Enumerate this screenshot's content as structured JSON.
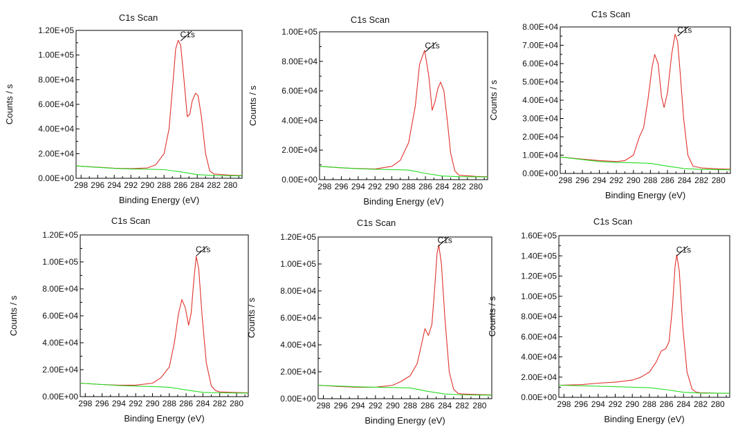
{
  "colors": {
    "envelope": "#e0302a",
    "background_line": "#22dd22",
    "axis": "#000000"
  },
  "chart_data": [
    {
      "type": "line",
      "title": "C1s Scan",
      "xlabel": "Binding Energy (eV)",
      "ylabel": "Counts / s",
      "x_ticks": [
        298,
        296,
        294,
        292,
        290,
        288,
        286,
        284,
        282,
        280
      ],
      "xlim": [
        298.6,
        278.6
      ],
      "y_ticks": [
        "0.00E+00",
        "2.00E+04",
        "4.00E+04",
        "6.00E+04",
        "8.00E+04",
        "1.00E+05",
        "1.20E+05"
      ],
      "ylim": [
        0,
        120000
      ],
      "annotation": {
        "label": "C1s",
        "x": 286.0,
        "y": 111500
      },
      "series": [
        {
          "name": "envelope",
          "points": [
            [
              298.6,
              10000
            ],
            [
              296,
              9000
            ],
            [
              294,
              8200
            ],
            [
              292,
              7800
            ],
            [
              290,
              8400
            ],
            [
              289,
              11000
            ],
            [
              288,
              20000
            ],
            [
              287.4,
              40000
            ],
            [
              286.9,
              80000
            ],
            [
              286.6,
              105000
            ],
            [
              286.3,
              112000
            ],
            [
              286.0,
              108000
            ],
            [
              285.6,
              80000
            ],
            [
              285.2,
              50000
            ],
            [
              284.9,
              52000
            ],
            [
              284.6,
              63000
            ],
            [
              284.2,
              69000
            ],
            [
              283.9,
              67000
            ],
            [
              283.5,
              50000
            ],
            [
              283.0,
              20000
            ],
            [
              282.5,
              6000
            ],
            [
              282,
              3500
            ],
            [
              280,
              2500
            ],
            [
              278.6,
              2200
            ]
          ]
        },
        {
          "name": "background",
          "points": [
            [
              298.6,
              10000
            ],
            [
              294,
              8000
            ],
            [
              292,
              7500
            ],
            [
              290,
              7400
            ],
            [
              288,
              7000
            ],
            [
              286,
              5200
            ],
            [
              284,
              3000
            ],
            [
              282,
              2200
            ],
            [
              278.6,
              2000
            ]
          ]
        }
      ]
    },
    {
      "type": "line",
      "title": "C1s Scan",
      "xlabel": "Binding Energy (eV)",
      "ylabel": "Counts / s",
      "x_ticks": [
        298,
        296,
        294,
        292,
        290,
        288,
        286,
        284,
        282,
        280
      ],
      "xlim": [
        298.6,
        278.6
      ],
      "y_ticks": [
        "0.00E+00",
        "2.00E+04",
        "4.00E+04",
        "6.00E+04",
        "8.00E+04",
        "1.00E+05"
      ],
      "ylim": [
        0,
        100000
      ],
      "annotation": {
        "label": "C1s",
        "x": 286.0,
        "y": 86500
      },
      "series": [
        {
          "name": "envelope",
          "points": [
            [
              298.6,
              9000
            ],
            [
              296,
              8000
            ],
            [
              294,
              7500
            ],
            [
              292,
              7200
            ],
            [
              290,
              9000
            ],
            [
              289,
              13000
            ],
            [
              288,
              25000
            ],
            [
              287.2,
              50000
            ],
            [
              286.7,
              78000
            ],
            [
              286.1,
              87500
            ],
            [
              285.6,
              70000
            ],
            [
              285.2,
              47000
            ],
            [
              284.9,
              52000
            ],
            [
              284.5,
              62000
            ],
            [
              284.2,
              66000
            ],
            [
              283.8,
              60000
            ],
            [
              283.4,
              40000
            ],
            [
              283.0,
              18000
            ],
            [
              282.5,
              6000
            ],
            [
              282,
              3000
            ],
            [
              280,
              2200
            ],
            [
              278.6,
              2000
            ]
          ]
        },
        {
          "name": "background",
          "points": [
            [
              298.6,
              9000
            ],
            [
              294,
              7400
            ],
            [
              292,
              7000
            ],
            [
              290,
              6800
            ],
            [
              288,
              6500
            ],
            [
              286,
              4200
            ],
            [
              284,
              2500
            ],
            [
              282,
              2000
            ],
            [
              278.6,
              1800
            ]
          ]
        }
      ]
    },
    {
      "type": "line",
      "title": "C1s Scan",
      "xlabel": "Binding Energy (eV)",
      "ylabel": "Counts / s",
      "x_ticks": [
        298,
        296,
        294,
        292,
        290,
        288,
        286,
        284,
        282,
        280
      ],
      "xlim": [
        298.6,
        278.6
      ],
      "y_ticks": [
        "0.00E+00",
        "1.00E+04",
        "2.00E+04",
        "3.00E+04",
        "4.00E+04",
        "5.00E+04",
        "6.00E+04",
        "7.00E+04",
        "8.00E+04"
      ],
      "ylim": [
        0,
        80000
      ],
      "annotation": {
        "label": "C1s",
        "x": 284.8,
        "y": 75000
      },
      "series": [
        {
          "name": "envelope",
          "points": [
            [
              298.6,
              9000
            ],
            [
              296,
              7800
            ],
            [
              294,
              7000
            ],
            [
              292,
              6500
            ],
            [
              291,
              7000
            ],
            [
              290,
              10000
            ],
            [
              289.3,
              20000
            ],
            [
              288.8,
              25000
            ],
            [
              288.3,
              40000
            ],
            [
              287.8,
              58000
            ],
            [
              287.5,
              65000
            ],
            [
              287.1,
              60000
            ],
            [
              286.7,
              42000
            ],
            [
              286.4,
              36000
            ],
            [
              286.0,
              44000
            ],
            [
              285.5,
              65000
            ],
            [
              285.1,
              76000
            ],
            [
              284.8,
              72000
            ],
            [
              284.5,
              55000
            ],
            [
              284.1,
              30000
            ],
            [
              283.6,
              10000
            ],
            [
              283.0,
              4000
            ],
            [
              282,
              3000
            ],
            [
              280,
              2500
            ],
            [
              278.6,
              2300
            ]
          ]
        },
        {
          "name": "background",
          "points": [
            [
              298.6,
              9000
            ],
            [
              294,
              6500
            ],
            [
              292,
              6000
            ],
            [
              290,
              5800
            ],
            [
              288,
              5500
            ],
            [
              286,
              4000
            ],
            [
              284,
              2600
            ],
            [
              282,
              2200
            ],
            [
              278.6,
              2000
            ]
          ]
        }
      ]
    },
    {
      "type": "line",
      "title": "C1s Scan",
      "xlabel": "Binding Energy (eV)",
      "ylabel": "Counts / s",
      "x_ticks": [
        298,
        296,
        294,
        292,
        290,
        288,
        286,
        284,
        282,
        280
      ],
      "xlim": [
        298.6,
        278.6
      ],
      "y_ticks": [
        "0.00E+00",
        "2.00E+04",
        "4.00E+04",
        "6.00E+04",
        "8.00E+04",
        "1.00E+05",
        "1.20E+05"
      ],
      "ylim": [
        0,
        120000
      ],
      "annotation": {
        "label": "C1s",
        "x": 284.8,
        "y": 104500
      },
      "series": [
        {
          "name": "envelope",
          "points": [
            [
              298.6,
              10000
            ],
            [
              296,
              9000
            ],
            [
              294,
              8500
            ],
            [
              292,
              8500
            ],
            [
              290,
              10000
            ],
            [
              289,
              14000
            ],
            [
              288,
              22000
            ],
            [
              287.4,
              40000
            ],
            [
              286.9,
              62000
            ],
            [
              286.5,
              72000
            ],
            [
              286.1,
              66000
            ],
            [
              285.7,
              53000
            ],
            [
              285.4,
              62000
            ],
            [
              285.1,
              85000
            ],
            [
              284.8,
              104000
            ],
            [
              284.5,
              95000
            ],
            [
              284.1,
              60000
            ],
            [
              283.6,
              25000
            ],
            [
              283.0,
              8000
            ],
            [
              282.5,
              4500
            ],
            [
              282,
              3500
            ],
            [
              280,
              3000
            ],
            [
              278.6,
              2800
            ]
          ]
        },
        {
          "name": "background",
          "points": [
            [
              298.6,
              10000
            ],
            [
              294,
              8200
            ],
            [
              292,
              7800
            ],
            [
              290,
              7500
            ],
            [
              288,
              7000
            ],
            [
              286,
              5000
            ],
            [
              284,
              3200
            ],
            [
              282,
              2800
            ],
            [
              278.6,
              2600
            ]
          ]
        }
      ]
    },
    {
      "type": "line",
      "title": "C1s Scan",
      "xlabel": "Binding Energy (eV)",
      "ylabel": "Counts / s",
      "x_ticks": [
        298,
        296,
        294,
        292,
        290,
        288,
        286,
        284,
        282,
        280
      ],
      "xlim": [
        298.6,
        278.6
      ],
      "y_ticks": [
        "0.00E+00",
        "2.00E+04",
        "4.00E+04",
        "6.00E+04",
        "8.00E+04",
        "1.00E+05",
        "1.20E+05"
      ],
      "ylim": [
        0,
        120000
      ],
      "annotation": {
        "label": "C1s",
        "x": 284.8,
        "y": 113000
      },
      "series": [
        {
          "name": "envelope",
          "points": [
            [
              298.6,
              10000
            ],
            [
              296,
              9000
            ],
            [
              294,
              8500
            ],
            [
              292,
              8500
            ],
            [
              290,
              10000
            ],
            [
              289,
              13000
            ],
            [
              288,
              17000
            ],
            [
              287.2,
              26000
            ],
            [
              286.7,
              40000
            ],
            [
              286.3,
              52000
            ],
            [
              285.9,
              47000
            ],
            [
              285.5,
              55000
            ],
            [
              285.2,
              80000
            ],
            [
              284.9,
              108000
            ],
            [
              284.7,
              114000
            ],
            [
              284.4,
              100000
            ],
            [
              284.0,
              60000
            ],
            [
              283.5,
              20000
            ],
            [
              283.0,
              7000
            ],
            [
              282.5,
              4000
            ],
            [
              282,
              3500
            ],
            [
              280,
              3000
            ],
            [
              278.6,
              2800
            ]
          ]
        },
        {
          "name": "background",
          "points": [
            [
              298.6,
              10000
            ],
            [
              294,
              8800
            ],
            [
              292,
              8500
            ],
            [
              290,
              8300
            ],
            [
              288,
              8000
            ],
            [
              286,
              5500
            ],
            [
              284,
              3500
            ],
            [
              282,
              2800
            ],
            [
              278.6,
              2600
            ]
          ]
        }
      ]
    },
    {
      "type": "line",
      "title": "C1s Scan",
      "xlabel": "Binding Energy (eV)",
      "ylabel": "Counts / s",
      "x_ticks": [
        298,
        296,
        294,
        292,
        290,
        288,
        286,
        284,
        282,
        280
      ],
      "xlim": [
        298.6,
        278.6
      ],
      "y_ticks": [
        "0.00E+00",
        "2.00E+04",
        "4.00E+04",
        "6.00E+04",
        "8.00E+04",
        "1.00E+05",
        "1.20E+05",
        "1.40E+05",
        "1.60E+05"
      ],
      "ylim": [
        0,
        160000
      ],
      "annotation": {
        "label": "C1s",
        "x": 284.8,
        "y": 140000
      },
      "series": [
        {
          "name": "envelope",
          "points": [
            [
              298.6,
              12000
            ],
            [
              296,
              12500
            ],
            [
              294,
              14000
            ],
            [
              292,
              15000
            ],
            [
              290,
              17000
            ],
            [
              289,
              20000
            ],
            [
              288,
              25000
            ],
            [
              287.2,
              35000
            ],
            [
              286.6,
              46000
            ],
            [
              286.1,
              48000
            ],
            [
              285.7,
              55000
            ],
            [
              285.3,
              90000
            ],
            [
              285.0,
              130000
            ],
            [
              284.8,
              141000
            ],
            [
              284.5,
              125000
            ],
            [
              284.1,
              70000
            ],
            [
              283.6,
              25000
            ],
            [
              283.0,
              8000
            ],
            [
              282.5,
              5000
            ],
            [
              282,
              4500
            ],
            [
              280,
              4000
            ],
            [
              278.6,
              4000
            ]
          ]
        },
        {
          "name": "background",
          "points": [
            [
              298.6,
              12000
            ],
            [
              294,
              11000
            ],
            [
              292,
              10500
            ],
            [
              290,
              10000
            ],
            [
              288,
              9500
            ],
            [
              286,
              7500
            ],
            [
              284,
              5000
            ],
            [
              282,
              4200
            ],
            [
              278.6,
              4000
            ]
          ]
        }
      ]
    }
  ]
}
